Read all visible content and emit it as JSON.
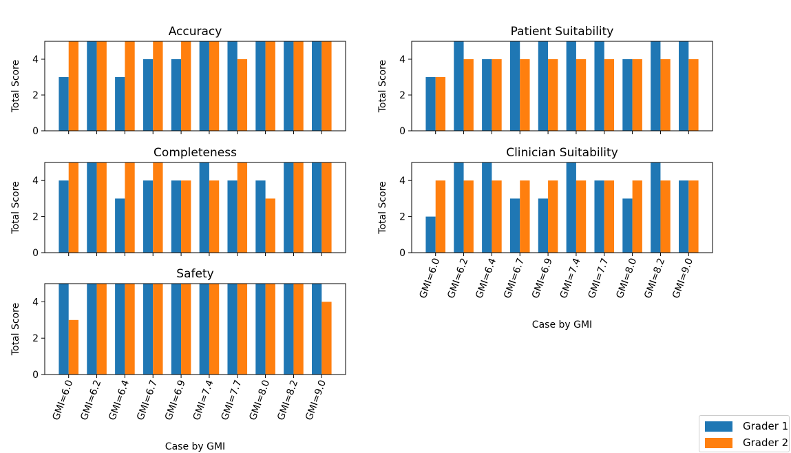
{
  "chart_data": [
    {
      "type": "bar",
      "title": "Accuracy",
      "categories": [
        "GMI=6.0",
        "GMI=6.2",
        "GMI=6.4",
        "GMI=6.7",
        "GMI=6.9",
        "GMI=7.4",
        "GMI=7.7",
        "GMI=8.0",
        "GMI=8.2",
        "GMI=9.0"
      ],
      "series": [
        {
          "name": "Grader 1",
          "values": [
            3,
            5,
            3,
            4,
            4,
            5,
            5,
            5,
            5,
            5
          ]
        },
        {
          "name": "Grader 2",
          "values": [
            5,
            5,
            5,
            5,
            5,
            5,
            4,
            5,
            5,
            5
          ]
        }
      ],
      "ylabel": "Total Score",
      "xlabel": "",
      "ylim": [
        0,
        5
      ],
      "yticks": [
        "0",
        "2",
        "4"
      ],
      "show_xticklabels": false
    },
    {
      "type": "bar",
      "title": "Completeness",
      "categories": [
        "GMI=6.0",
        "GMI=6.2",
        "GMI=6.4",
        "GMI=6.7",
        "GMI=6.9",
        "GMI=7.4",
        "GMI=7.7",
        "GMI=8.0",
        "GMI=8.2",
        "GMI=9.0"
      ],
      "series": [
        {
          "name": "Grader 1",
          "values": [
            4,
            5,
            3,
            4,
            4,
            5,
            4,
            4,
            5,
            5
          ]
        },
        {
          "name": "Grader 2",
          "values": [
            5,
            5,
            5,
            5,
            4,
            4,
            5,
            3,
            5,
            5
          ]
        }
      ],
      "ylabel": "Total Score",
      "xlabel": "",
      "ylim": [
        0,
        5
      ],
      "yticks": [
        "0",
        "2",
        "4"
      ],
      "show_xticklabels": false
    },
    {
      "type": "bar",
      "title": "Safety",
      "categories": [
        "GMI=6.0",
        "GMI=6.2",
        "GMI=6.4",
        "GMI=6.7",
        "GMI=6.9",
        "GMI=7.4",
        "GMI=7.7",
        "GMI=8.0",
        "GMI=8.2",
        "GMI=9.0"
      ],
      "series": [
        {
          "name": "Grader 1",
          "values": [
            5,
            5,
            5,
            5,
            5,
            5,
            5,
            5,
            5,
            5
          ]
        },
        {
          "name": "Grader 2",
          "values": [
            3,
            5,
            5,
            5,
            5,
            5,
            5,
            5,
            5,
            4
          ]
        }
      ],
      "ylabel": "Total Score",
      "xlabel": "Case by GMI",
      "ylim": [
        0,
        5
      ],
      "yticks": [
        "0",
        "2",
        "4"
      ],
      "show_xticklabels": true
    },
    {
      "type": "bar",
      "title": "Patient Suitability",
      "categories": [
        "GMI=6.0",
        "GMI=6.2",
        "GMI=6.4",
        "GMI=6.7",
        "GMI=6.9",
        "GMI=7.4",
        "GMI=7.7",
        "GMI=8.0",
        "GMI=8.2",
        "GMI=9.0"
      ],
      "series": [
        {
          "name": "Grader 1",
          "values": [
            3,
            5,
            4,
            5,
            5,
            5,
            5,
            4,
            5,
            5
          ]
        },
        {
          "name": "Grader 2",
          "values": [
            3,
            4,
            4,
            4,
            4,
            4,
            4,
            4,
            4,
            4
          ]
        }
      ],
      "ylabel": "Total Score",
      "xlabel": "",
      "ylim": [
        0,
        5
      ],
      "yticks": [
        "0",
        "2",
        "4"
      ],
      "show_xticklabels": false
    },
    {
      "type": "bar",
      "title": "Clinician Suitability",
      "categories": [
        "GMI=6.0",
        "GMI=6.2",
        "GMI=6.4",
        "GMI=6.7",
        "GMI=6.9",
        "GMI=7.4",
        "GMI=7.7",
        "GMI=8.0",
        "GMI=8.2",
        "GMI=9.0"
      ],
      "series": [
        {
          "name": "Grader 1",
          "values": [
            2,
            5,
            5,
            3,
            3,
            5,
            4,
            3,
            5,
            4
          ]
        },
        {
          "name": "Grader 2",
          "values": [
            4,
            4,
            4,
            4,
            4,
            4,
            4,
            4,
            4,
            4
          ]
        }
      ],
      "ylabel": "Total Score",
      "xlabel": "Case by GMI",
      "ylim": [
        0,
        5
      ],
      "yticks": [
        "0",
        "2",
        "4"
      ],
      "show_xticklabels": true
    }
  ],
  "legend": {
    "position": "lower-right",
    "entries": [
      {
        "label": "Grader 1",
        "color": "#1f77b4"
      },
      {
        "label": "Grader 2",
        "color": "#ff7f0e"
      }
    ]
  },
  "colors": {
    "grader1": "#1f77b4",
    "grader2": "#ff7f0e"
  }
}
